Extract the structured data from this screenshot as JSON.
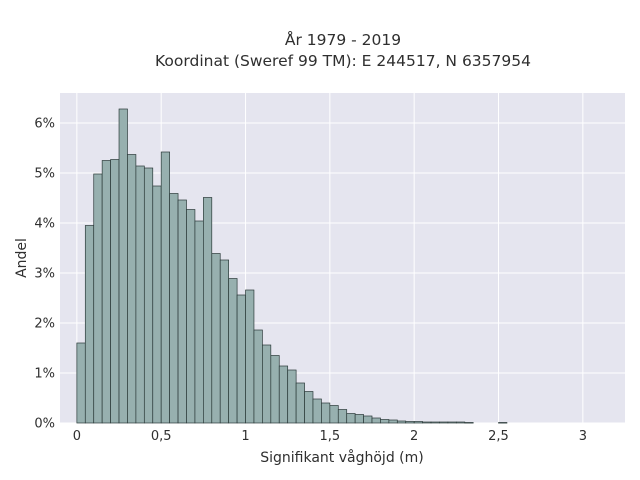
{
  "chart_data": {
    "type": "bar",
    "title": "År 1979 - 2019",
    "subtitle": "Koordinat (Sweref 99 TM): E 244517, N 6357954",
    "xlabel": "Signifikant våghöjd (m)",
    "ylabel": "Andel",
    "xlim": [
      -0.1,
      3.25
    ],
    "ylim": [
      0,
      6.6
    ],
    "y_unit": "%",
    "bin_width": 0.05,
    "bin_start": 0.0,
    "x_ticks": [
      {
        "value": 0,
        "label": "0"
      },
      {
        "value": 0.5,
        "label": "0,5"
      },
      {
        "value": 1,
        "label": "1"
      },
      {
        "value": 1.5,
        "label": "1,5"
      },
      {
        "value": 2,
        "label": "2"
      },
      {
        "value": 2.5,
        "label": "2,5"
      },
      {
        "value": 3,
        "label": "3"
      }
    ],
    "y_ticks": [
      {
        "value": 0,
        "label": "0%"
      },
      {
        "value": 1,
        "label": "1%"
      },
      {
        "value": 2,
        "label": "2%"
      },
      {
        "value": 3,
        "label": "3%"
      },
      {
        "value": 4,
        "label": "4%"
      },
      {
        "value": 5,
        "label": "5%"
      },
      {
        "value": 6,
        "label": "6%"
      }
    ],
    "values": [
      1.6,
      3.95,
      4.98,
      5.25,
      5.27,
      6.28,
      5.37,
      5.14,
      5.1,
      4.74,
      5.42,
      4.59,
      4.46,
      4.27,
      4.04,
      4.51,
      3.39,
      3.26,
      2.89,
      2.56,
      2.66,
      1.86,
      1.56,
      1.35,
      1.14,
      1.06,
      0.8,
      0.63,
      0.48,
      0.4,
      0.35,
      0.27,
      0.19,
      0.17,
      0.14,
      0.1,
      0.07,
      0.06,
      0.04,
      0.03,
      0.03,
      0.02,
      0.02,
      0.02,
      0.02,
      0.02,
      0.01,
      0.0,
      0.0,
      0.0,
      0.01
    ],
    "grid": true,
    "colors": {
      "plot_background": "#e5e5ef",
      "grid": "#ffffff",
      "bar_fill": "#97b0af",
      "bar_edge": "#2b3a39",
      "text": "#2f2f2f"
    }
  }
}
